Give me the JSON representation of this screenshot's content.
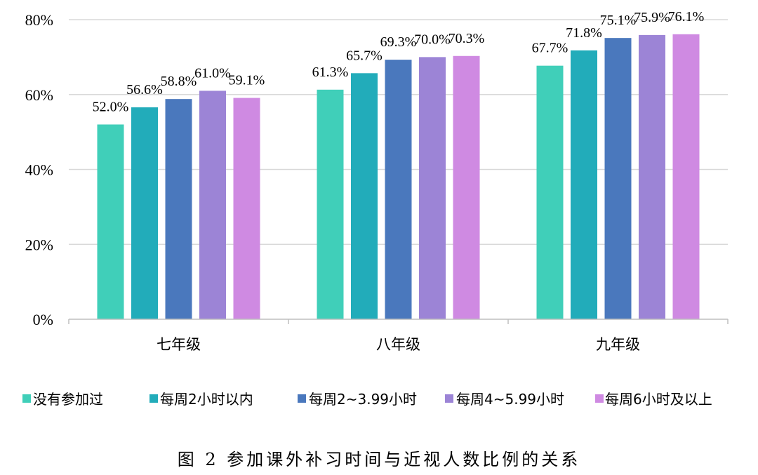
{
  "chart_data": {
    "type": "bar",
    "title": "",
    "xlabel": "",
    "ylabel": "",
    "ylim": [
      0,
      80
    ],
    "yticks": [
      "0%",
      "20%",
      "40%",
      "60%",
      "80%"
    ],
    "ytick_values": [
      0,
      20,
      40,
      60,
      80
    ],
    "categories": [
      "七年级",
      "八年级",
      "九年级"
    ],
    "series": [
      {
        "name": "没有参加过",
        "color": "#40CFB9",
        "values": [
          52.0,
          61.3,
          67.7
        ],
        "labels": [
          "52.0%",
          "61.3%",
          "67.7%"
        ]
      },
      {
        "name": "每周2小时以内",
        "color": "#22ACBA",
        "values": [
          56.6,
          65.7,
          71.8
        ],
        "labels": [
          "56.6%",
          "65.7%",
          "71.8%"
        ]
      },
      {
        "name": "每周2~3.99小时",
        "color": "#4A78BD",
        "values": [
          58.8,
          69.3,
          75.1
        ],
        "labels": [
          "58.8%",
          "69.3%",
          "75.1%"
        ]
      },
      {
        "name": "每周4~5.99小时",
        "color": "#9C84D6",
        "values": [
          61.0,
          70.0,
          75.9
        ],
        "labels": [
          "61.0%",
          "70.0%",
          "75.9%"
        ]
      },
      {
        "name": "每周6小时及以上",
        "color": "#CF8AE2",
        "values": [
          59.1,
          70.3,
          76.1
        ],
        "labels": [
          "59.1%",
          "70.3%",
          "76.1%"
        ]
      }
    ],
    "grid": true,
    "legend_position": "bottom"
  },
  "caption": "图 2 参加课外补习时间与近视人数比例的关系"
}
